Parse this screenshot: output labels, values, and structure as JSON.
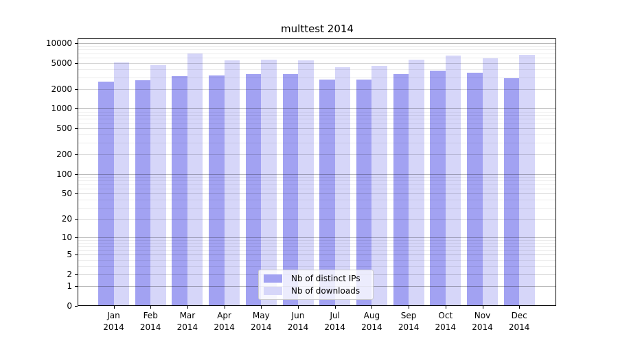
{
  "chart_data": {
    "type": "bar",
    "title": "multtest 2014",
    "categories": [
      "Jan 2014",
      "Feb 2014",
      "Mar 2014",
      "Apr 2014",
      "May 2014",
      "Jun 2014",
      "Jul 2014",
      "Aug 2014",
      "Sep 2014",
      "Oct 2014",
      "Nov 2014",
      "Dec 2014"
    ],
    "series": [
      {
        "name": "Nb of distinct IPs",
        "color": "#a2a2f2",
        "values": [
          2600,
          2700,
          3100,
          3200,
          3400,
          3350,
          2750,
          2750,
          3400,
          3800,
          3500,
          2950
        ]
      },
      {
        "name": "Nb of downloads",
        "color": "#d6d6f9",
        "values": [
          5100,
          4600,
          6900,
          5400,
          5600,
          5500,
          4300,
          4450,
          5600,
          6400,
          5800,
          6600
        ]
      }
    ],
    "yscale": "log1p",
    "yticks": [
      0,
      1,
      2,
      5,
      10,
      20,
      50,
      100,
      200,
      500,
      1000,
      2000,
      5000,
      10000
    ],
    "ylim": [
      0,
      11400
    ],
    "grid": true,
    "legend_position": "lower center",
    "colors": {
      "grid_major_power10": "rgba(0,0,0,0.28)",
      "grid_major_other": "rgba(0,0,0,0.16)",
      "grid_minor": "rgba(0,0,0,0.075)",
      "axis": "#000000",
      "background": "#ffffff"
    }
  }
}
